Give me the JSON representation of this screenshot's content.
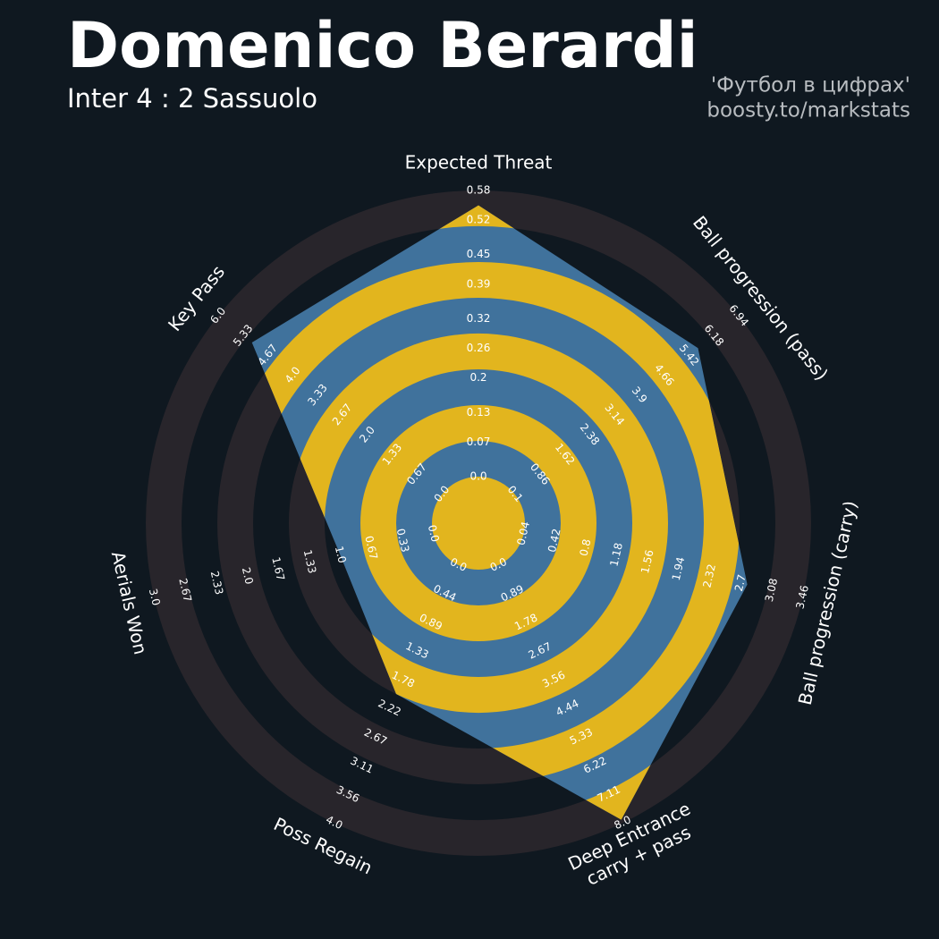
{
  "chart_data": {
    "type": "radar",
    "title": "Domenico Berardi",
    "subtitle": "Inter 4 : 2 Sassuolo",
    "credits": [
      "'Футбол в цифрах'",
      "boosty.to/markstats"
    ],
    "colors": {
      "background": "#0f1820",
      "rings_outside": "#28252b",
      "rings_inside": "#e2b51e",
      "fill": "#40729c"
    },
    "params": [
      {
        "label": [
          "Expected Threat"
        ],
        "lim": [
          0,
          0.58
        ],
        "ticks": [
          {
            "value": 0,
            "label": "0.0"
          },
          0.07,
          0.13,
          0.2,
          0.26,
          0.32,
          0.39,
          0.45,
          0.52,
          0.58
        ]
      },
      {
        "label": [
          "Ball progression (pass)"
        ],
        "lim": [
          0.1,
          6.94
        ],
        "ticks": [
          0.1,
          0.86,
          1.62,
          2.38,
          3.14,
          3.9,
          4.66,
          5.42,
          6.18,
          6.94
        ]
      },
      {
        "label": [
          "Ball progression (carry)"
        ],
        "lim": [
          0.04,
          3.46
        ],
        "ticks": [
          0.04,
          0.42,
          0.8,
          1.18,
          1.56,
          1.94,
          2.32,
          2.7,
          3.08,
          3.46
        ]
      },
      {
        "label": [
          "Deep Entrance",
          "carry + pass"
        ],
        "lim": [
          0,
          8
        ],
        "ticks": [
          {
            "value": 0,
            "label": "0.0"
          },
          0.89,
          1.78,
          2.67,
          3.56,
          4.44,
          5.33,
          6.22,
          7.11,
          {
            "value": 8,
            "label": "8.0"
          }
        ]
      },
      {
        "label": [
          "Poss Regain"
        ],
        "lim": [
          0,
          4
        ],
        "ticks": [
          {
            "value": 0,
            "label": "0.0"
          },
          0.44,
          0.89,
          1.33,
          1.78,
          2.22,
          2.67,
          3.11,
          3.56,
          {
            "value": 4,
            "label": "4.0"
          }
        ]
      },
      {
        "label": [
          "Aerials Won"
        ],
        "lim": [
          0,
          3
        ],
        "ticks": [
          {
            "value": 0,
            "label": "0.0"
          },
          0.33,
          0.67,
          {
            "value": 1,
            "label": "1.0"
          },
          1.33,
          1.67,
          {
            "value": 2,
            "label": "2.0"
          },
          2.33,
          2.67,
          {
            "value": 3,
            "label": "3.0"
          }
        ]
      },
      {
        "label": [
          "Key Pass"
        ],
        "lim": [
          0,
          6
        ],
        "ticks": [
          {
            "value": 0,
            "label": "0.0"
          },
          0.67,
          1.33,
          {
            "value": 2,
            "label": "2.0"
          },
          2.67,
          3.33,
          {
            "value": 4,
            "label": "4.0"
          },
          4.67,
          5.33,
          {
            "value": 6,
            "label": "6.0"
          }
        ]
      }
    ],
    "values": [
      0.55,
      5.7,
      2.78,
      7.9,
      2.0,
      1.0,
      5.1
    ]
  }
}
